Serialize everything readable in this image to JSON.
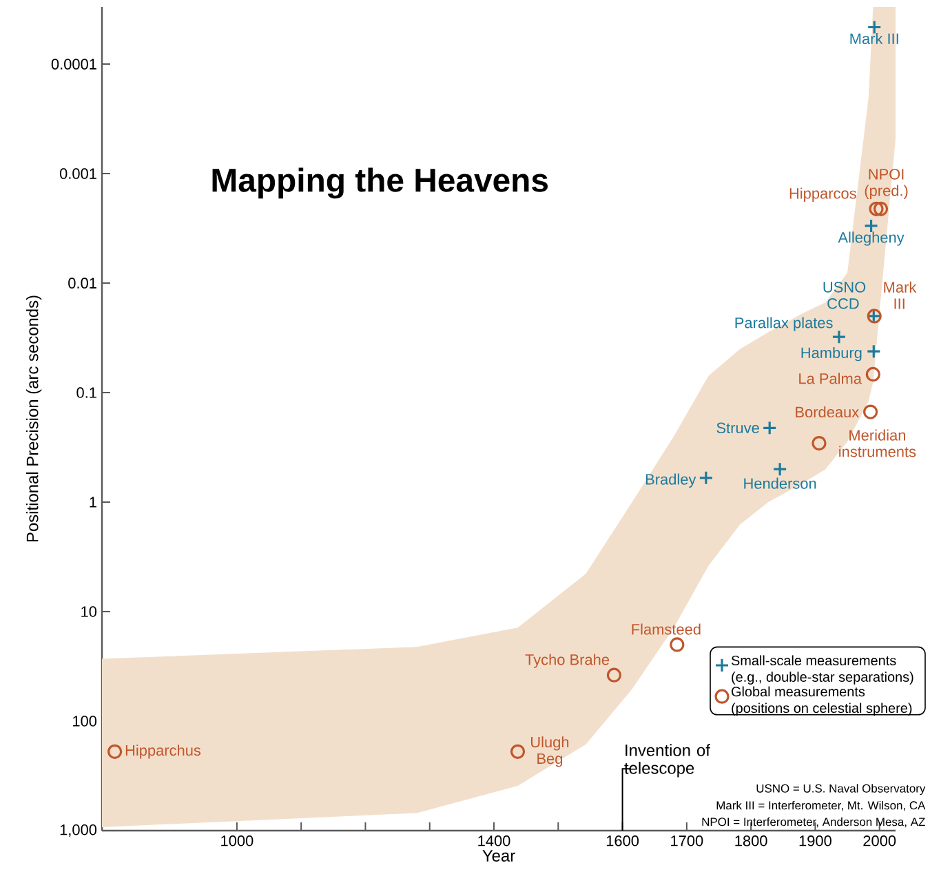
{
  "chart_data": {
    "type": "scatter",
    "title": "Mapping the Heavens",
    "xlabel": "Year",
    "ylabel": "Positional Precision (arc seconds)",
    "log": "y",
    "legend": "bottom right",
    "xlim": [
      790,
      2025
    ],
    "ylim": [
      1000,
      3e-05
    ],
    "xticks": [
      1000,
      {
        "value": 1100,
        "label": null
      },
      {
        "value": 1200,
        "label": null
      },
      {
        "value": 1300,
        "label": null
      },
      1400,
      {
        "value": 1500,
        "label": null
      },
      1600,
      1700,
      1800,
      1900,
      2000
    ],
    "yticks": [
      {
        "value": 1000,
        "label": "1,000"
      },
      100,
      10,
      1,
      0.1,
      0.01,
      0.001,
      0.0001
    ],
    "series": [
      {
        "type": "area",
        "color": "#f2dfcb",
        "x": [
          790,
          1280,
          1437,
          1543,
          1615,
          1680,
          1734,
          1783,
          1827,
          1879,
          1916,
          1950,
          1983,
          1990,
          2025
        ],
        "values": [
          null,
          null,
          null,
          null,
          null,
          null,
          null,
          null,
          null,
          null,
          null,
          null,
          null,
          null,
          null
        ],
        "lower": [
          930,
          690,
          390,
          163,
          51,
          14,
          3.8,
          1.6,
          1,
          0.68,
          0.5,
          0.28,
          0.12,
          0.08,
          0.00048
        ],
        "upper": [
          27,
          21,
          14,
          4.5,
          1,
          0.25,
          0.07,
          0.04,
          0.028,
          0.019,
          0.015,
          0.008,
          0.0002,
          3e-05,
          3e-05
        ]
      },
      {
        "name": "Small-scale measurements (e.g., double-star separations)",
        "color": "#1b7a9e",
        "marker": "cross",
        "x": [
          1992,
          1987,
          1991,
          1937,
          1991,
          1829,
          1845,
          1730
        ],
        "values": [
          4.6e-05,
          0.003,
          0.02,
          0.031,
          0.042,
          0.21,
          0.5,
          0.6
        ]
      },
      {
        "name": "Global measurements (positions on celestial sphere)",
        "color": "#c0562b",
        "marker": "circle",
        "x": [
          1992,
          1990,
          1986,
          1906,
          1685,
          1587,
          1437,
          810,
          1995,
          2002
        ],
        "values": [
          0.02,
          0.068,
          0.15,
          0.29,
          20,
          38,
          190,
          190,
          0.0021,
          0.0021
        ]
      }
    ],
    "ref_lines": [
      {
        "axis": "x",
        "value": 1600,
        "label": "Invention of telescope"
      }
    ],
    "annotations": [
      {
        "text": "Mark III",
        "x": 1992,
        "y": 4.6e-05
      },
      {
        "text": "Allegheny",
        "x": 1987,
        "y": 0.003
      },
      {
        "text": "USNO CCD",
        "x": 1991,
        "y": 0.02
      },
      {
        "text": "Mark III",
        "x": 1992,
        "y": 0.02
      },
      {
        "text": "Parallax plates",
        "x": 1937,
        "y": 0.031
      },
      {
        "text": "Hamburg",
        "x": 1991,
        "y": 0.042
      },
      {
        "text": "La Palma",
        "x": 1990,
        "y": 0.068
      },
      {
        "text": "Bordeaux",
        "x": 1986,
        "y": 0.15
      },
      {
        "text": "Meridian instruments",
        "x": 1906,
        "y": 0.29
      },
      {
        "text": "Struve",
        "x": 1829,
        "y": 0.21
      },
      {
        "text": "Henderson",
        "x": 1845,
        "y": 0.5
      },
      {
        "text": "Bradley",
        "x": 1730,
        "y": 0.6
      },
      {
        "text": "Flamsteed",
        "x": 1685,
        "y": 20
      },
      {
        "text": "Tycho Brahe",
        "x": 1587,
        "y": 38
      },
      {
        "text": "Ulugh Beg",
        "x": 1437,
        "y": 190
      },
      {
        "text": "Hipparchus",
        "x": 810,
        "y": 190
      },
      {
        "text": "Hipparcos",
        "x": 1995,
        "y": 0.0021
      },
      {
        "text": "NPOI (pred.)",
        "x": 2002,
        "y": 0.0021
      },
      "USNO = U.S. Naval Observatory",
      "Mark III = Interferometer, Mt. Wilson, CA",
      "NPOI = Interferometer, Anderson Mesa, AZ"
    ]
  }
}
